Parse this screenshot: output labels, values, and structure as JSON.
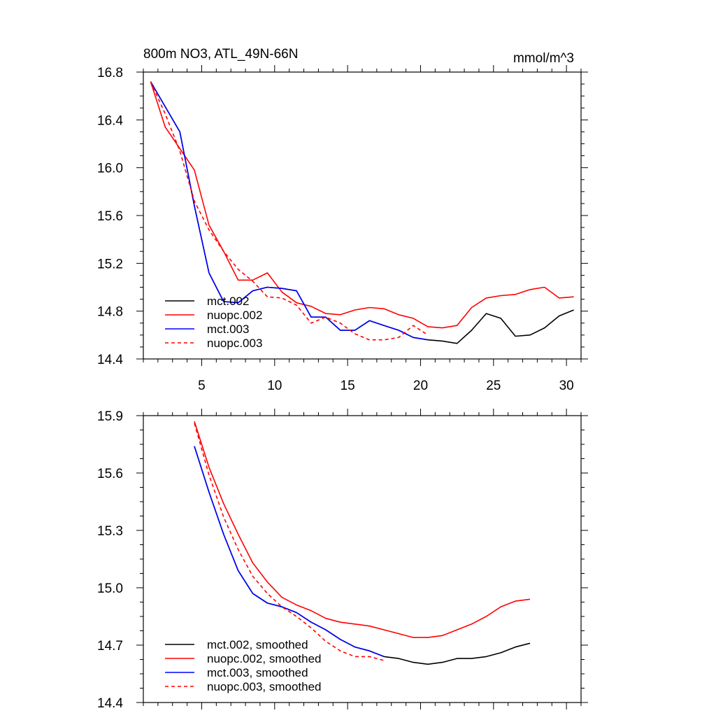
{
  "chart_data": [
    {
      "type": "line",
      "title": "800m NO3, ATL_49N-66N",
      "units": "mmol/m^3",
      "xlabel": "",
      "ylabel": "",
      "xlim": [
        1,
        31
      ],
      "ylim": [
        14.4,
        16.8
      ],
      "xticks": [
        5,
        10,
        15,
        20,
        25,
        30
      ],
      "yticks": [
        14.4,
        14.8,
        15.2,
        15.6,
        16.0,
        16.4,
        16.8
      ],
      "ytick_labels": [
        "14.4",
        "14.8",
        "15.2",
        "15.6",
        "16.0",
        "16.4",
        "16.8"
      ],
      "legend_position": "bottom-left",
      "series": [
        {
          "name": "mct.002",
          "color": "#000000",
          "dash": "solid",
          "x": [
            1.5,
            2.5,
            3.5,
            4.5,
            5.5,
            6.5,
            7.5,
            8.5,
            9.5,
            10.5,
            11.5,
            12.5,
            13.5,
            14.5,
            15.5,
            16.5,
            17.5,
            18.5,
            19.5,
            20.5,
            21.5,
            22.5,
            23.5,
            24.5,
            25.5,
            26.5,
            27.5,
            28.5,
            29.5,
            30.5
          ],
          "values": [
            16.72,
            16.51,
            16.3,
            15.68,
            15.12,
            14.88,
            14.87,
            14.97,
            15.0,
            14.99,
            14.97,
            14.75,
            14.75,
            14.64,
            14.64,
            14.72,
            14.68,
            14.64,
            14.58,
            14.56,
            14.55,
            14.53,
            14.64,
            14.78,
            14.74,
            14.59,
            14.6,
            14.66,
            14.76,
            14.81
          ]
        },
        {
          "name": "nuopc.002",
          "color": "#ff0000",
          "dash": "solid",
          "x": [
            1.5,
            2.5,
            3.5,
            4.5,
            5.5,
            6.5,
            7.5,
            8.5,
            9.5,
            10.5,
            11.5,
            12.5,
            13.5,
            14.5,
            15.5,
            16.5,
            17.5,
            18.5,
            19.5,
            20.5,
            21.5,
            22.5,
            23.5,
            24.5,
            25.5,
            26.5,
            27.5,
            28.5,
            29.5,
            30.5
          ],
          "values": [
            16.72,
            16.34,
            16.16,
            15.98,
            15.52,
            15.3,
            15.06,
            15.06,
            15.12,
            14.96,
            14.87,
            14.84,
            14.78,
            14.77,
            14.81,
            14.83,
            14.82,
            14.77,
            14.74,
            14.67,
            14.66,
            14.68,
            14.83,
            14.91,
            14.93,
            14.94,
            14.98,
            15.0,
            14.91,
            14.92
          ]
        },
        {
          "name": "mct.003",
          "color": "#0000ff",
          "dash": "solid",
          "x": [
            1.5,
            2.5,
            3.5,
            4.5,
            5.5,
            6.5,
            7.5,
            8.5,
            9.5,
            10.5,
            11.5,
            12.5,
            13.5,
            14.5,
            15.5,
            16.5,
            17.5,
            18.5,
            19.5,
            20.5
          ],
          "values": [
            16.72,
            16.51,
            16.3,
            15.68,
            15.12,
            14.88,
            14.87,
            14.97,
            15.0,
            14.99,
            14.97,
            14.75,
            14.75,
            14.64,
            14.64,
            14.72,
            14.68,
            14.64,
            14.58,
            14.56
          ]
        },
        {
          "name": "nuopc.003",
          "color": "#ff0000",
          "dash": "dashed",
          "x": [
            1.5,
            2.5,
            3.5,
            4.5,
            5.5,
            6.5,
            7.5,
            8.5,
            9.5,
            10.5,
            11.5,
            12.5,
            13.5,
            14.5,
            15.5,
            16.5,
            17.5,
            18.5,
            19.5,
            20.5
          ],
          "values": [
            16.72,
            16.45,
            16.14,
            15.72,
            15.48,
            15.3,
            15.15,
            15.05,
            14.92,
            14.91,
            14.85,
            14.7,
            14.75,
            14.7,
            14.61,
            14.56,
            14.56,
            14.58,
            14.68,
            14.6
          ]
        }
      ]
    },
    {
      "type": "line",
      "title": "",
      "xlabel": "",
      "ylabel": "",
      "xlim": [
        1,
        31
      ],
      "ylim": [
        14.4,
        15.9
      ],
      "xticks": [
        5,
        10,
        15,
        20,
        25,
        30
      ],
      "yticks": [
        14.4,
        14.7,
        15.0,
        15.3,
        15.6,
        15.9
      ],
      "ytick_labels": [
        "14.4",
        "14.7",
        "15.0",
        "15.3",
        "15.6",
        "15.9"
      ],
      "legend_position": "bottom-left",
      "series": [
        {
          "name": "mct.002, smoothed",
          "color": "#000000",
          "dash": "solid",
          "x": [
            4.5,
            5.5,
            6.5,
            7.5,
            8.5,
            9.5,
            10.5,
            11.5,
            12.5,
            13.5,
            14.5,
            15.5,
            16.5,
            17.5,
            18.5,
            19.5,
            20.5,
            21.5,
            22.5,
            23.5,
            24.5,
            25.5,
            26.5,
            27.5
          ],
          "values": [
            15.74,
            15.5,
            15.28,
            15.09,
            14.97,
            14.92,
            14.9,
            14.87,
            14.82,
            14.78,
            14.73,
            14.69,
            14.67,
            14.64,
            14.63,
            14.61,
            14.6,
            14.61,
            14.63,
            14.63,
            14.64,
            14.66,
            14.69,
            14.71
          ]
        },
        {
          "name": "nuopc.002, smoothed",
          "color": "#ff0000",
          "dash": "solid",
          "x": [
            4.5,
            5.5,
            6.5,
            7.5,
            8.5,
            9.5,
            10.5,
            11.5,
            12.5,
            13.5,
            14.5,
            15.5,
            16.5,
            17.5,
            18.5,
            19.5,
            20.5,
            21.5,
            22.5,
            23.5,
            24.5,
            25.5,
            26.5,
            27.5
          ],
          "values": [
            15.87,
            15.63,
            15.44,
            15.28,
            15.13,
            15.03,
            14.95,
            14.91,
            14.88,
            14.84,
            14.82,
            14.81,
            14.8,
            14.78,
            14.76,
            14.74,
            14.74,
            14.75,
            14.78,
            14.81,
            14.85,
            14.9,
            14.93,
            14.94
          ]
        },
        {
          "name": "mct.003, smoothed",
          "color": "#0000ff",
          "dash": "solid",
          "x": [
            4.5,
            5.5,
            6.5,
            7.5,
            8.5,
            9.5,
            10.5,
            11.5,
            12.5,
            13.5,
            14.5,
            15.5,
            16.5,
            17.5
          ],
          "values": [
            15.74,
            15.5,
            15.28,
            15.09,
            14.97,
            14.92,
            14.9,
            14.87,
            14.82,
            14.78,
            14.73,
            14.69,
            14.67,
            14.64
          ]
        },
        {
          "name": "nuopc.003, smoothed",
          "color": "#ff0000",
          "dash": "dashed",
          "x": [
            4.5,
            5.5,
            6.5,
            7.5,
            8.5,
            9.5,
            10.5,
            11.5,
            12.5,
            13.5,
            14.5,
            15.5,
            16.5,
            17.5
          ],
          "values": [
            15.86,
            15.59,
            15.37,
            15.2,
            15.06,
            14.97,
            14.9,
            14.85,
            14.79,
            14.72,
            14.67,
            14.64,
            14.64,
            14.62
          ]
        }
      ]
    }
  ]
}
